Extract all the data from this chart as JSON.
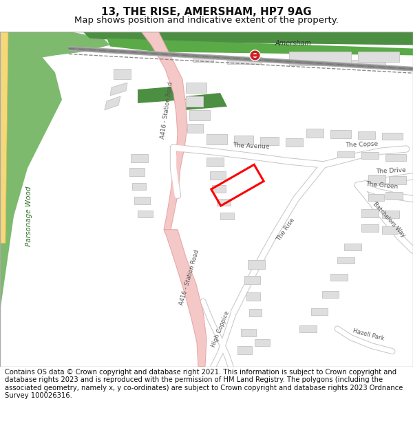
{
  "title_line1": "13, THE RISE, AMERSHAM, HP7 9AG",
  "title_line2": "Map shows position and indicative extent of the property.",
  "footer_text": "Contains OS data © Crown copyright and database right 2021. This information is subject to Crown copyright and database rights 2023 and is reproduced with the permission of HM Land Registry. The polygons (including the associated geometry, namely x, y co-ordinates) are subject to Crown copyright and database rights 2023 Ordnance Survey 100026316.",
  "title_fontsize": 11,
  "subtitle_fontsize": 9.5,
  "footer_fontsize": 7.2,
  "fig_width": 6.0,
  "fig_height": 6.25,
  "bg_color": "#ffffff",
  "map_bg": "#f5f3f0",
  "building_color": "#dedede",
  "building_edge": "#c8c8c8",
  "green_color": "#7dba6e",
  "green_light_color": "#5a9e4c",
  "rail_green_color": "#4d8f42",
  "map_border_color": "#aaaaaa",
  "road_pink_color": "#f5c8c8",
  "road_pink_edge": "#e8a8a8",
  "road_white_color": "#ffffff",
  "road_gray_edge": "#c8c8c8",
  "road_yellow_color": "#f5d87a",
  "road_yellow_edge": "#d4b840",
  "rail_color": "#888888",
  "plot_color": "#ff0000",
  "text_dark": "#333333",
  "text_road": "#555555",
  "text_green": "#2d6e22"
}
